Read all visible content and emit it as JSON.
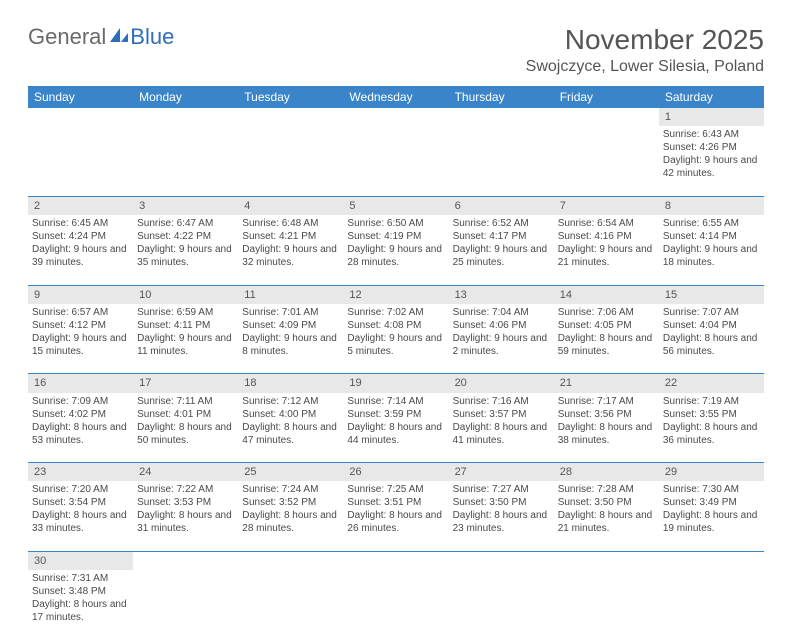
{
  "logo": {
    "part1": "General",
    "part2": "Blue"
  },
  "title": {
    "month": "November 2025",
    "location": "Swojczyce, Lower Silesia, Poland"
  },
  "dayHeaders": [
    "Sunday",
    "Monday",
    "Tuesday",
    "Wednesday",
    "Thursday",
    "Friday",
    "Saturday"
  ],
  "weeks": [
    {
      "nums": [
        "",
        "",
        "",
        "",
        "",
        "",
        "1"
      ],
      "cells": [
        "",
        "",
        "",
        "",
        "",
        "",
        "Sunrise: 6:43 AM\nSunset: 4:26 PM\nDaylight: 9 hours and 42 minutes."
      ]
    },
    {
      "nums": [
        "2",
        "3",
        "4",
        "5",
        "6",
        "7",
        "8"
      ],
      "cells": [
        "Sunrise: 6:45 AM\nSunset: 4:24 PM\nDaylight: 9 hours and 39 minutes.",
        "Sunrise: 6:47 AM\nSunset: 4:22 PM\nDaylight: 9 hours and 35 minutes.",
        "Sunrise: 6:48 AM\nSunset: 4:21 PM\nDaylight: 9 hours and 32 minutes.",
        "Sunrise: 6:50 AM\nSunset: 4:19 PM\nDaylight: 9 hours and 28 minutes.",
        "Sunrise: 6:52 AM\nSunset: 4:17 PM\nDaylight: 9 hours and 25 minutes.",
        "Sunrise: 6:54 AM\nSunset: 4:16 PM\nDaylight: 9 hours and 21 minutes.",
        "Sunrise: 6:55 AM\nSunset: 4:14 PM\nDaylight: 9 hours and 18 minutes."
      ]
    },
    {
      "nums": [
        "9",
        "10",
        "11",
        "12",
        "13",
        "14",
        "15"
      ],
      "cells": [
        "Sunrise: 6:57 AM\nSunset: 4:12 PM\nDaylight: 9 hours and 15 minutes.",
        "Sunrise: 6:59 AM\nSunset: 4:11 PM\nDaylight: 9 hours and 11 minutes.",
        "Sunrise: 7:01 AM\nSunset: 4:09 PM\nDaylight: 9 hours and 8 minutes.",
        "Sunrise: 7:02 AM\nSunset: 4:08 PM\nDaylight: 9 hours and 5 minutes.",
        "Sunrise: 7:04 AM\nSunset: 4:06 PM\nDaylight: 9 hours and 2 minutes.",
        "Sunrise: 7:06 AM\nSunset: 4:05 PM\nDaylight: 8 hours and 59 minutes.",
        "Sunrise: 7:07 AM\nSunset: 4:04 PM\nDaylight: 8 hours and 56 minutes."
      ]
    },
    {
      "nums": [
        "16",
        "17",
        "18",
        "19",
        "20",
        "21",
        "22"
      ],
      "cells": [
        "Sunrise: 7:09 AM\nSunset: 4:02 PM\nDaylight: 8 hours and 53 minutes.",
        "Sunrise: 7:11 AM\nSunset: 4:01 PM\nDaylight: 8 hours and 50 minutes.",
        "Sunrise: 7:12 AM\nSunset: 4:00 PM\nDaylight: 8 hours and 47 minutes.",
        "Sunrise: 7:14 AM\nSunset: 3:59 PM\nDaylight: 8 hours and 44 minutes.",
        "Sunrise: 7:16 AM\nSunset: 3:57 PM\nDaylight: 8 hours and 41 minutes.",
        "Sunrise: 7:17 AM\nSunset: 3:56 PM\nDaylight: 8 hours and 38 minutes.",
        "Sunrise: 7:19 AM\nSunset: 3:55 PM\nDaylight: 8 hours and 36 minutes."
      ]
    },
    {
      "nums": [
        "23",
        "24",
        "25",
        "26",
        "27",
        "28",
        "29"
      ],
      "cells": [
        "Sunrise: 7:20 AM\nSunset: 3:54 PM\nDaylight: 8 hours and 33 minutes.",
        "Sunrise: 7:22 AM\nSunset: 3:53 PM\nDaylight: 8 hours and 31 minutes.",
        "Sunrise: 7:24 AM\nSunset: 3:52 PM\nDaylight: 8 hours and 28 minutes.",
        "Sunrise: 7:25 AM\nSunset: 3:51 PM\nDaylight: 8 hours and 26 minutes.",
        "Sunrise: 7:27 AM\nSunset: 3:50 PM\nDaylight: 8 hours and 23 minutes.",
        "Sunrise: 7:28 AM\nSunset: 3:50 PM\nDaylight: 8 hours and 21 minutes.",
        "Sunrise: 7:30 AM\nSunset: 3:49 PM\nDaylight: 8 hours and 19 minutes."
      ]
    },
    {
      "nums": [
        "30",
        "",
        "",
        "",
        "",
        "",
        ""
      ],
      "cells": [
        "Sunrise: 7:31 AM\nSunset: 3:48 PM\nDaylight: 8 hours and 17 minutes.",
        "",
        "",
        "",
        "",
        "",
        ""
      ]
    }
  ]
}
